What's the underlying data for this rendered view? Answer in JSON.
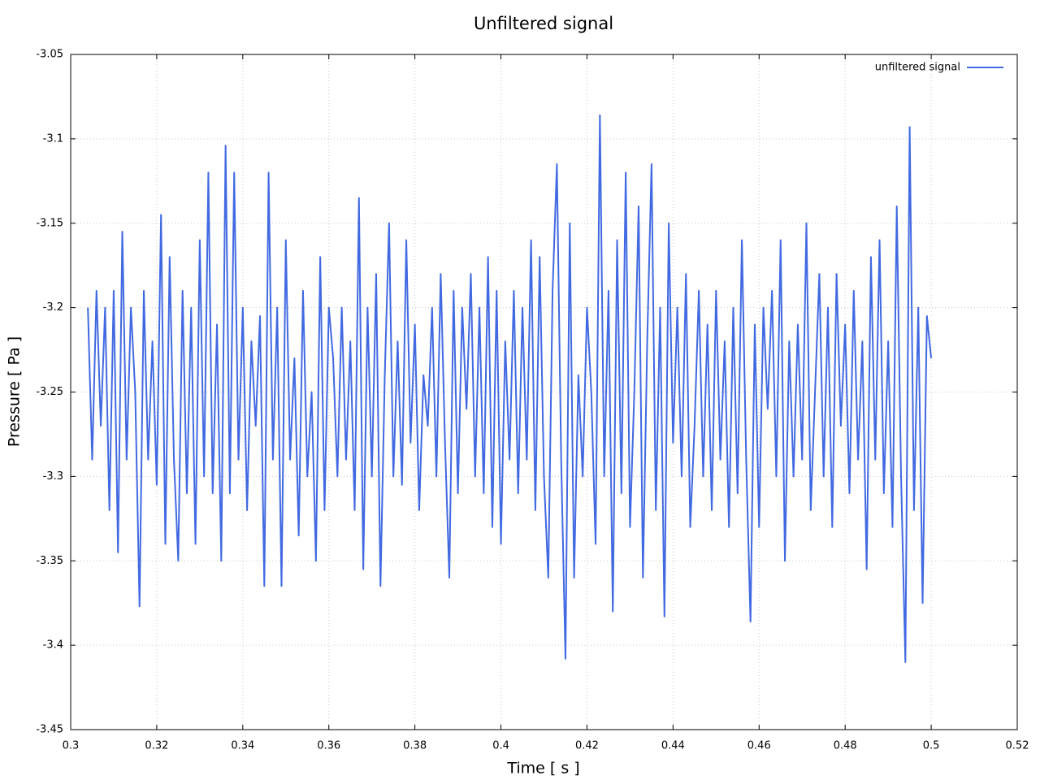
{
  "chart_data": {
    "type": "line",
    "title": "Unfiltered signal",
    "x_label": "Time [ s ]",
    "y_label": "Pressure [ Pa ]",
    "xlim": [
      0.3,
      0.52
    ],
    "xticks": [
      0.3,
      0.32,
      0.34,
      0.36,
      0.38,
      0.4,
      0.42,
      0.44,
      0.46,
      0.48,
      0.5,
      0.52
    ],
    "ylim": [
      -3.45,
      -3.05
    ],
    "yticks": [
      -3.45,
      -3.4,
      -3.35,
      -3.3,
      -3.25,
      -3.2,
      -3.15,
      -3.1,
      -3.05
    ],
    "grid": true,
    "legend": "top-right",
    "x": [
      0.304,
      0.305,
      0.306,
      0.307,
      0.308,
      0.309,
      0.31,
      0.311,
      0.312,
      0.313,
      0.314,
      0.315,
      0.316,
      0.317,
      0.318,
      0.319,
      0.32,
      0.321,
      0.322,
      0.323,
      0.324,
      0.325,
      0.326,
      0.327,
      0.328,
      0.329,
      0.33,
      0.331,
      0.332,
      0.333,
      0.334,
      0.335,
      0.336,
      0.337,
      0.338,
      0.339,
      0.34,
      0.341,
      0.342,
      0.343,
      0.344,
      0.345,
      0.346,
      0.347,
      0.348,
      0.349,
      0.35,
      0.351,
      0.352,
      0.353,
      0.354,
      0.355,
      0.356,
      0.357,
      0.358,
      0.359,
      0.36,
      0.361,
      0.362,
      0.363,
      0.364,
      0.365,
      0.366,
      0.367,
      0.368,
      0.369,
      0.37,
      0.371,
      0.372,
      0.373,
      0.374,
      0.375,
      0.376,
      0.377,
      0.378,
      0.379,
      0.38,
      0.381,
      0.382,
      0.383,
      0.384,
      0.385,
      0.386,
      0.387,
      0.388,
      0.389,
      0.39,
      0.391,
      0.392,
      0.393,
      0.394,
      0.395,
      0.396,
      0.397,
      0.398,
      0.399,
      0.4,
      0.401,
      0.402,
      0.403,
      0.404,
      0.405,
      0.406,
      0.407,
      0.408,
      0.409,
      0.41,
      0.411,
      0.412,
      0.413,
      0.414,
      0.415,
      0.416,
      0.417,
      0.418,
      0.419,
      0.42,
      0.421,
      0.422,
      0.423,
      0.424,
      0.425,
      0.426,
      0.427,
      0.428,
      0.429,
      0.43,
      0.431,
      0.432,
      0.433,
      0.434,
      0.435,
      0.436,
      0.437,
      0.438,
      0.439,
      0.44,
      0.441,
      0.442,
      0.443,
      0.444,
      0.445,
      0.446,
      0.447,
      0.448,
      0.449,
      0.45,
      0.451,
      0.452,
      0.453,
      0.454,
      0.455,
      0.456,
      0.457,
      0.458,
      0.459,
      0.46,
      0.461,
      0.462,
      0.463,
      0.464,
      0.465,
      0.466,
      0.467,
      0.468,
      0.469,
      0.47,
      0.471,
      0.472,
      0.473,
      0.474,
      0.475,
      0.476,
      0.477,
      0.478,
      0.479,
      0.48,
      0.481,
      0.482,
      0.483,
      0.484,
      0.485,
      0.486,
      0.487,
      0.488,
      0.489,
      0.49,
      0.491,
      0.492,
      0.493,
      0.494,
      0.495,
      0.496,
      0.497,
      0.498,
      0.499,
      0.5
    ],
    "series": [
      {
        "name": "unfiltered signal",
        "color": "#4169e1",
        "values": [
          -3.2,
          -3.29,
          -3.19,
          -3.27,
          -3.2,
          -3.32,
          -3.19,
          -3.345,
          -3.155,
          -3.29,
          -3.2,
          -3.25,
          -3.377,
          -3.19,
          -3.29,
          -3.22,
          -3.305,
          -3.145,
          -3.34,
          -3.17,
          -3.29,
          -3.35,
          -3.19,
          -3.31,
          -3.2,
          -3.34,
          -3.16,
          -3.3,
          -3.12,
          -3.31,
          -3.21,
          -3.35,
          -3.104,
          -3.31,
          -3.12,
          -3.29,
          -3.2,
          -3.32,
          -3.22,
          -3.27,
          -3.205,
          -3.365,
          -3.12,
          -3.29,
          -3.2,
          -3.365,
          -3.16,
          -3.29,
          -3.23,
          -3.335,
          -3.19,
          -3.3,
          -3.25,
          -3.35,
          -3.17,
          -3.32,
          -3.2,
          -3.23,
          -3.3,
          -3.2,
          -3.29,
          -3.22,
          -3.32,
          -3.135,
          -3.355,
          -3.2,
          -3.3,
          -3.18,
          -3.365,
          -3.24,
          -3.15,
          -3.3,
          -3.22,
          -3.305,
          -3.16,
          -3.28,
          -3.21,
          -3.32,
          -3.24,
          -3.27,
          -3.2,
          -3.3,
          -3.18,
          -3.28,
          -3.36,
          -3.19,
          -3.31,
          -3.2,
          -3.26,
          -3.18,
          -3.3,
          -3.2,
          -3.31,
          -3.17,
          -3.33,
          -3.19,
          -3.34,
          -3.22,
          -3.29,
          -3.19,
          -3.31,
          -3.2,
          -3.29,
          -3.16,
          -3.32,
          -3.17,
          -3.3,
          -3.36,
          -3.19,
          -3.115,
          -3.29,
          -3.408,
          -3.15,
          -3.36,
          -3.24,
          -3.3,
          -3.2,
          -3.25,
          -3.34,
          -3.086,
          -3.3,
          -3.19,
          -3.38,
          -3.16,
          -3.31,
          -3.12,
          -3.33,
          -3.25,
          -3.14,
          -3.36,
          -3.22,
          -3.115,
          -3.32,
          -3.2,
          -3.383,
          -3.15,
          -3.28,
          -3.2,
          -3.3,
          -3.18,
          -3.33,
          -3.27,
          -3.19,
          -3.3,
          -3.21,
          -3.32,
          -3.19,
          -3.29,
          -3.22,
          -3.33,
          -3.2,
          -3.31,
          -3.16,
          -3.29,
          -3.386,
          -3.21,
          -3.33,
          -3.2,
          -3.26,
          -3.19,
          -3.3,
          -3.16,
          -3.35,
          -3.22,
          -3.3,
          -3.21,
          -3.29,
          -3.15,
          -3.32,
          -3.25,
          -3.18,
          -3.3,
          -3.2,
          -3.33,
          -3.18,
          -3.27,
          -3.21,
          -3.31,
          -3.19,
          -3.29,
          -3.22,
          -3.355,
          -3.17,
          -3.29,
          -3.16,
          -3.31,
          -3.22,
          -3.33,
          -3.14,
          -3.3,
          -3.41,
          -3.093,
          -3.32,
          -3.2,
          -3.375,
          -3.205,
          -3.23
        ]
      }
    ]
  }
}
